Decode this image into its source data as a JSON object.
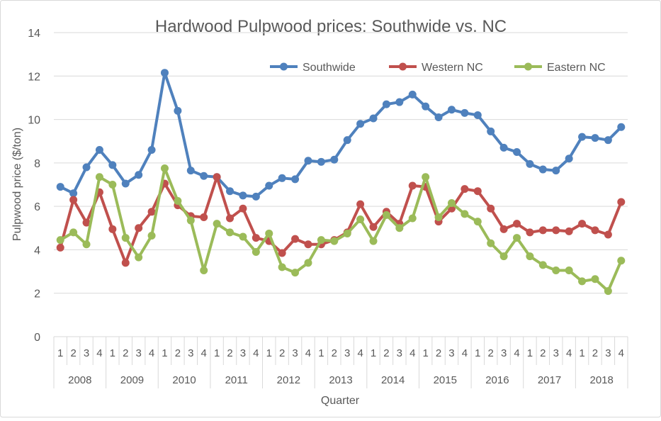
{
  "chart_data": {
    "type": "line",
    "title": "Hardwood Pulpwood prices: Southwide vs. NC",
    "xlabel": "Quarter",
    "ylabel": "Pulpwood price ($/ton)",
    "ylim": [
      0,
      14
    ],
    "yticks": [
      0,
      2,
      4,
      6,
      8,
      10,
      12,
      14
    ],
    "grid": true,
    "legend_placement": "top-right",
    "years": [
      "2008",
      "2009",
      "2010",
      "2011",
      "2012",
      "2013",
      "2014",
      "2015",
      "2016",
      "2017",
      "2018"
    ],
    "quarters": [
      "1",
      "2",
      "3",
      "4"
    ],
    "series": [
      {
        "name": "Southwide",
        "color": "#4f81bd",
        "values": [
          6.9,
          6.6,
          7.8,
          8.6,
          7.9,
          7.05,
          7.45,
          8.6,
          12.15,
          10.4,
          7.65,
          7.4,
          7.35,
          6.7,
          6.5,
          6.45,
          6.95,
          7.3,
          7.25,
          8.1,
          8.05,
          8.15,
          9.05,
          9.8,
          10.05,
          10.7,
          10.8,
          11.15,
          10.6,
          10.1,
          10.45,
          10.3,
          10.2,
          9.45,
          8.7,
          8.5,
          7.95,
          7.7,
          7.65,
          8.2,
          9.2,
          9.15,
          9.05,
          9.65
        ]
      },
      {
        "name": "Western NC",
        "color": "#c0504d",
        "values": [
          4.1,
          6.3,
          5.25,
          6.65,
          4.95,
          3.4,
          5.0,
          5.75,
          7.05,
          6.05,
          5.55,
          5.5,
          7.35,
          5.45,
          5.9,
          4.55,
          4.4,
          3.85,
          4.5,
          4.25,
          4.25,
          4.45,
          4.8,
          6.1,
          5.05,
          5.75,
          5.2,
          6.95,
          6.9,
          5.3,
          5.9,
          6.8,
          6.7,
          5.9,
          4.95,
          5.2,
          4.8,
          4.9,
          4.9,
          4.85,
          5.2,
          4.9,
          4.7,
          6.2
        ]
      },
      {
        "name": "Eastern NC",
        "color": "#9bbb59",
        "values": [
          4.45,
          4.8,
          4.25,
          7.35,
          7.0,
          4.55,
          3.65,
          4.65,
          7.75,
          6.25,
          5.35,
          3.05,
          5.2,
          4.8,
          4.6,
          3.9,
          4.75,
          3.2,
          2.95,
          3.4,
          4.45,
          4.4,
          4.75,
          5.4,
          4.4,
          5.6,
          5.0,
          5.45,
          7.35,
          5.5,
          6.15,
          5.65,
          5.3,
          4.3,
          3.7,
          4.55,
          3.7,
          3.3,
          3.05,
          3.05,
          2.55,
          2.65,
          2.1,
          3.5
        ]
      }
    ]
  }
}
